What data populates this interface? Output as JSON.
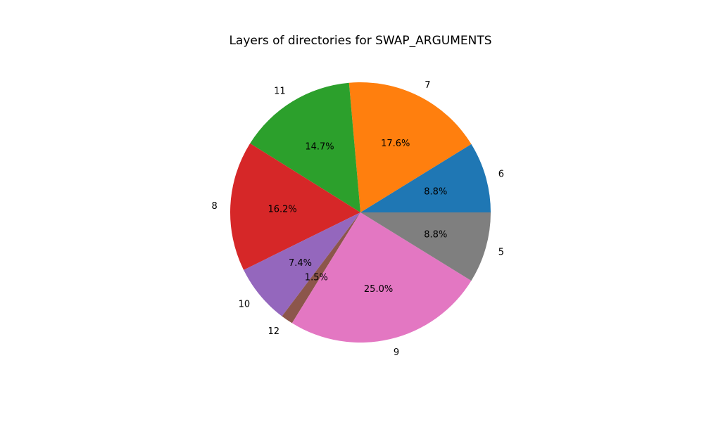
{
  "chart_data": {
    "type": "pie",
    "title": "Layers of directories for SWAP_ARGUMENTS",
    "slices": [
      {
        "label": "6",
        "value": 8.8,
        "pct": "8.8%",
        "color": "#1f77b4"
      },
      {
        "label": "7",
        "value": 17.6,
        "pct": "17.6%",
        "color": "#ff7f0e"
      },
      {
        "label": "11",
        "value": 14.7,
        "pct": "14.7%",
        "color": "#2ca02c"
      },
      {
        "label": "8",
        "value": 16.2,
        "pct": "16.2%",
        "color": "#d62728"
      },
      {
        "label": "10",
        "value": 7.4,
        "pct": "7.4%",
        "color": "#9467bd"
      },
      {
        "label": "12",
        "value": 1.5,
        "pct": "1.5%",
        "color": "#8c564b"
      },
      {
        "label": "9",
        "value": 25.0,
        "pct": "25.0%",
        "color": "#e377c2"
      },
      {
        "label": "5",
        "value": 8.8,
        "pct": "8.8%",
        "color": "#7f7f7f"
      }
    ],
    "start_angle_deg": 0,
    "direction": "counterclockwise"
  }
}
